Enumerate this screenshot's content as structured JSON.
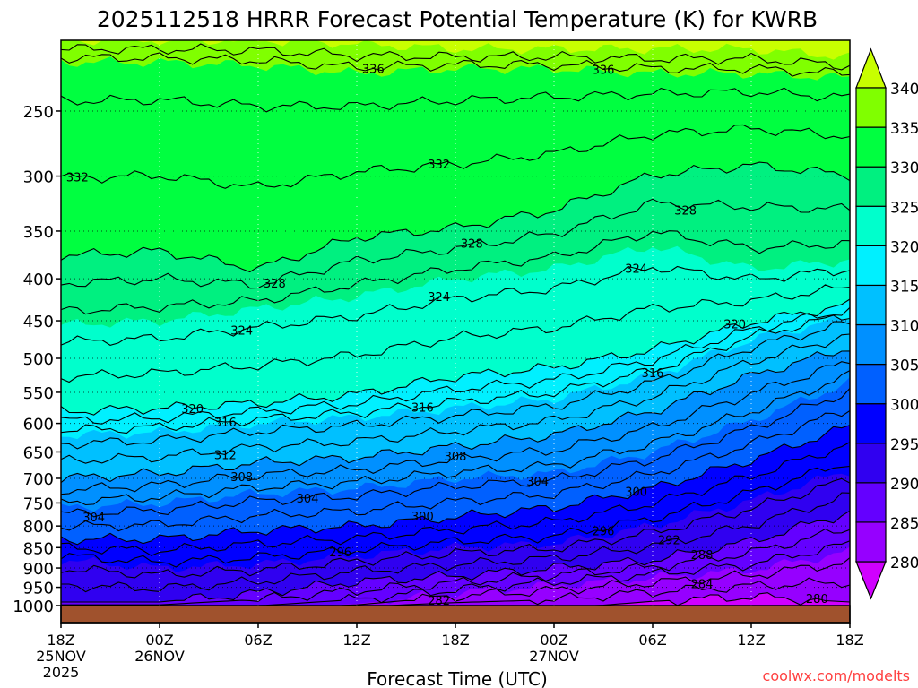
{
  "chart_data": {
    "type": "heatmap",
    "subtype": "filled-contour",
    "title": "2025112518 HRRR Forecast Potential Temperature (K) for KWRB",
    "xlabel": "Forecast Time (UTC)",
    "ylabel": "",
    "credit": "coolwx.com/modelts",
    "x_hours": [
      0,
      6,
      12,
      18,
      24,
      30,
      36,
      42,
      48
    ],
    "x_tick_labels": [
      {
        "h": 0,
        "lines": [
          "18Z",
          "25NOV",
          "2025"
        ]
      },
      {
        "h": 6,
        "lines": [
          "00Z",
          "26NOV"
        ]
      },
      {
        "h": 12,
        "lines": [
          "06Z"
        ]
      },
      {
        "h": 18,
        "lines": [
          "12Z"
        ]
      },
      {
        "h": 24,
        "lines": [
          "18Z"
        ]
      },
      {
        "h": 30,
        "lines": [
          "00Z",
          "27NOV"
        ]
      },
      {
        "h": 36,
        "lines": [
          "06Z"
        ]
      },
      {
        "h": 42,
        "lines": [
          "12Z"
        ]
      },
      {
        "h": 48,
        "lines": [
          "18Z"
        ]
      }
    ],
    "y_ticks": [
      250,
      300,
      350,
      400,
      450,
      500,
      550,
      600,
      650,
      700,
      750,
      800,
      850,
      900,
      950,
      1000
    ],
    "ylim_hPa": [
      1000,
      205
    ],
    "y_scale": "log-pressure",
    "colorbar": {
      "levels": [
        280,
        285,
        290,
        295,
        300,
        305,
        310,
        315,
        320,
        325,
        330,
        335,
        340
      ],
      "labels": [
        "280",
        "285",
        "290",
        "295",
        "300",
        "305",
        "310",
        "315",
        "320",
        "325",
        "330",
        "335",
        "340"
      ],
      "colors": [
        "#d000ff",
        "#9600ff",
        "#6400ff",
        "#3000f0",
        "#0000ff",
        "#0060ff",
        "#0090ff",
        "#00c0ff",
        "#00f0ff",
        "#00ffcc",
        "#00f080",
        "#00ff40",
        "#80ff00",
        "#c8ff00"
      ]
    },
    "isentrope_pressure_hPa": {
      "280": [
        1010,
        1010,
        1010,
        1010,
        1010,
        1010,
        988,
        975,
        990
      ],
      "285": [
        1010,
        1010,
        1010,
        995,
        965,
        945,
        925,
        905,
        860
      ],
      "290": [
        990,
        990,
        965,
        935,
        920,
        900,
        880,
        835,
        770
      ],
      "295": [
        880,
        900,
        890,
        870,
        850,
        840,
        800,
        745,
        685
      ],
      "300": [
        830,
        830,
        810,
        800,
        780,
        760,
        720,
        665,
        605
      ],
      "305": [
        760,
        750,
        730,
        720,
        700,
        690,
        650,
        595,
        535
      ],
      "310": [
        700,
        690,
        670,
        660,
        640,
        620,
        580,
        525,
        485
      ],
      "315": [
        620,
        615,
        600,
        590,
        575,
        560,
        525,
        475,
        445
      ],
      "320": [
        580,
        575,
        567,
        553,
        526,
        513,
        488,
        452,
        430
      ],
      "325": [
        455,
        450,
        435,
        420,
        400,
        389,
        365,
        389,
        380
      ],
      "330": [
        375,
        370,
        389,
        356,
        347,
        330,
        299,
        291,
        299
      ],
      "335": [
        218,
        218,
        220,
        225,
        222,
        222,
        225,
        225,
        228
      ],
      "340": [
        205,
        205,
        205,
        207,
        210,
        210,
        210,
        210,
        215
      ]
    },
    "contour_interval_K": 2,
    "contour_labels": [
      {
        "value": "336",
        "h": 19
      },
      {
        "value": "336",
        "h": 33
      },
      {
        "value": "332",
        "h": 1
      },
      {
        "value": "332",
        "h": 23
      },
      {
        "value": "328",
        "h": 13
      },
      {
        "value": "328",
        "h": 25
      },
      {
        "value": "328",
        "h": 38
      },
      {
        "value": "324",
        "h": 11
      },
      {
        "value": "324",
        "h": 23
      },
      {
        "value": "324",
        "h": 35
      },
      {
        "value": "320",
        "h": 8
      },
      {
        "value": "320",
        "h": 41
      },
      {
        "value": "316",
        "h": 10
      },
      {
        "value": "316",
        "h": 22
      },
      {
        "value": "316",
        "h": 36
      },
      {
        "value": "312",
        "h": 10
      },
      {
        "value": "308",
        "h": 11
      },
      {
        "value": "308",
        "h": 24
      },
      {
        "value": "304",
        "h": 2
      },
      {
        "value": "304",
        "h": 15
      },
      {
        "value": "304",
        "h": 29
      },
      {
        "value": "300",
        "h": 22
      },
      {
        "value": "300",
        "h": 35
      },
      {
        "value": "296",
        "h": 17
      },
      {
        "value": "296",
        "h": 33
      },
      {
        "value": "292",
        "h": 37
      },
      {
        "value": "288",
        "h": 39
      },
      {
        "value": "284",
        "h": 39
      },
      {
        "value": "282",
        "h": 23
      },
      {
        "value": "280",
        "h": 46
      }
    ],
    "ground_color": "#a0522d"
  }
}
